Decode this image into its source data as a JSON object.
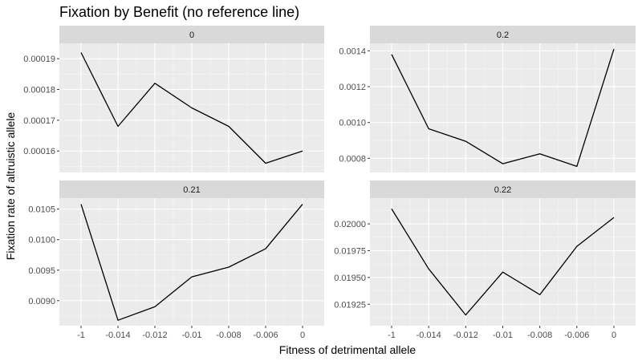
{
  "chart_data": {
    "type": "line",
    "title": "Fixation by Benefit (no reference line)",
    "xlabel": "Fitness of detrimental allele",
    "ylabel": "Fixation rate of altruistic allele",
    "grid": true,
    "categories": [
      "-1",
      "-0.014",
      "-0.012",
      "-0.01",
      "-0.008",
      "-0.006",
      "0"
    ],
    "panels": [
      {
        "label": "0",
        "values": [
          0.000192,
          0.000168,
          0.000182,
          0.000174,
          0.000168,
          0.000156,
          0.00016
        ],
        "yticks": [
          0.00016,
          0.00017,
          0.00018,
          0.00019
        ],
        "ytick_labels": [
          "0.00016",
          "0.00017",
          "0.00018",
          "0.00019"
        ],
        "ylim": [
          0.000153,
          0.000195
        ]
      },
      {
        "label": "0.2",
        "values": [
          0.00138,
          0.000965,
          0.000895,
          0.00077,
          0.000825,
          0.000755,
          0.00141
        ],
        "yticks": [
          0.0008,
          0.001,
          0.0012,
          0.0014
        ],
        "ytick_labels": [
          "0.0008",
          "0.0010",
          "0.0012",
          "0.0014"
        ],
        "ylim": [
          0.000721,
          0.001442
        ]
      },
      {
        "label": "0.21",
        "values": [
          0.01058,
          0.00868,
          0.0089,
          0.00939,
          0.00955,
          0.00985,
          0.01058
        ],
        "yticks": [
          0.009,
          0.0095,
          0.01,
          0.0105
        ],
        "ytick_labels": [
          "0.0090",
          "0.0095",
          "0.0100",
          "0.0105"
        ],
        "ylim": [
          0.00859,
          0.01068
        ]
      },
      {
        "label": "0.22",
        "values": [
          0.02014,
          0.01958,
          0.01915,
          0.01955,
          0.01934,
          0.01979,
          0.02006
        ],
        "yticks": [
          0.01925,
          0.0195,
          0.01975,
          0.02
        ],
        "ytick_labels": [
          "0.01925",
          "0.01950",
          "0.01975",
          "0.02000"
        ],
        "ylim": [
          0.01905,
          0.02024
        ]
      }
    ]
  }
}
